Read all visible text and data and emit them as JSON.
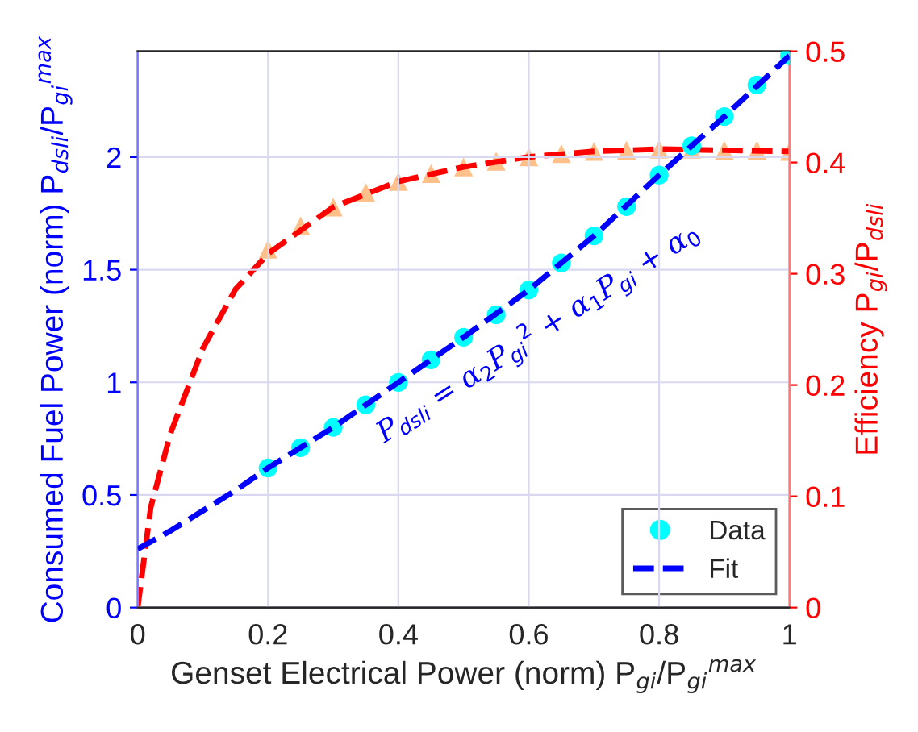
{
  "chart_data": {
    "type": "line",
    "xlabel": "Genset Electrical Power (norm) P$_{gi}$/P$_{gi}$$^{max}$",
    "ylabel": "Consumed Fuel Power (norm) P$_{dsli}$/P$_{gi}$$^{max}$",
    "y2label": "Efficiency P$_{gi}$/P$_{dsli}$",
    "annotations": [
      "P$_{dsli}$ = α$_{2}$P$_{gi}$$^{2}$ + α$_{1}$P$_{gi}$ + α$_{0}$"
    ],
    "xlim": [
      0,
      1
    ],
    "xticks": [
      0,
      0.2,
      0.4,
      0.6,
      0.8,
      1
    ],
    "ylim": [
      0,
      2.47
    ],
    "yticks": [
      0,
      0.5,
      1,
      1.5,
      2
    ],
    "y2lim": [
      0,
      0.5
    ],
    "y2ticks": [
      0,
      0.1,
      0.2,
      0.3,
      0.4,
      0.5
    ],
    "grid": true,
    "legend": "bottom right",
    "series": [
      {
        "name": "Data",
        "type": "scatter",
        "marker": "circle",
        "color": "#00ffff",
        "x": [
          0.2,
          0.25,
          0.3,
          0.35,
          0.4,
          0.45,
          0.5,
          0.55,
          0.6,
          0.65,
          0.7,
          0.75,
          0.8,
          0.85,
          0.9,
          0.95,
          1.0
        ],
        "values": [
          0.62,
          0.71,
          0.8,
          0.9,
          1.0,
          1.1,
          1.2,
          1.3,
          1.41,
          1.53,
          1.65,
          1.78,
          1.92,
          2.05,
          2.18,
          2.32,
          2.45
        ]
      },
      {
        "name": "Fit",
        "line_style": "dashed",
        "color": "#0000ff",
        "x": [
          0,
          0.05,
          0.1,
          0.15,
          0.2,
          0.3,
          0.4,
          0.5,
          0.6,
          0.7,
          0.8,
          0.9,
          1.0
        ],
        "values": [
          0.26,
          0.34,
          0.43,
          0.52,
          0.62,
          0.8,
          1.0,
          1.2,
          1.41,
          1.65,
          1.92,
          2.18,
          2.45
        ]
      },
      {
        "type": "scatter",
        "marker": "triangle",
        "axis": "y2",
        "color": "#ffc08a",
        "x": [
          0.2,
          0.25,
          0.3,
          0.35,
          0.4,
          0.45,
          0.5,
          0.55,
          0.6,
          0.65,
          0.7,
          0.75,
          0.8,
          0.85,
          0.9,
          0.95,
          1.0
        ],
        "values": [
          0.322,
          0.343,
          0.36,
          0.373,
          0.383,
          0.39,
          0.396,
          0.401,
          0.405,
          0.408,
          0.41,
          0.411,
          0.412,
          0.412,
          0.411,
          0.411,
          0.41
        ]
      },
      {
        "line_style": "dashed",
        "axis": "y2",
        "color": "#ff0000",
        "x": [
          0,
          0.02,
          0.05,
          0.1,
          0.15,
          0.2,
          0.3,
          0.4,
          0.5,
          0.6,
          0.7,
          0.8,
          0.9,
          1.0
        ],
        "values": [
          0,
          0.09,
          0.156,
          0.233,
          0.286,
          0.318,
          0.36,
          0.383,
          0.396,
          0.405,
          0.41,
          0.412,
          0.411,
          0.41
        ]
      }
    ]
  }
}
